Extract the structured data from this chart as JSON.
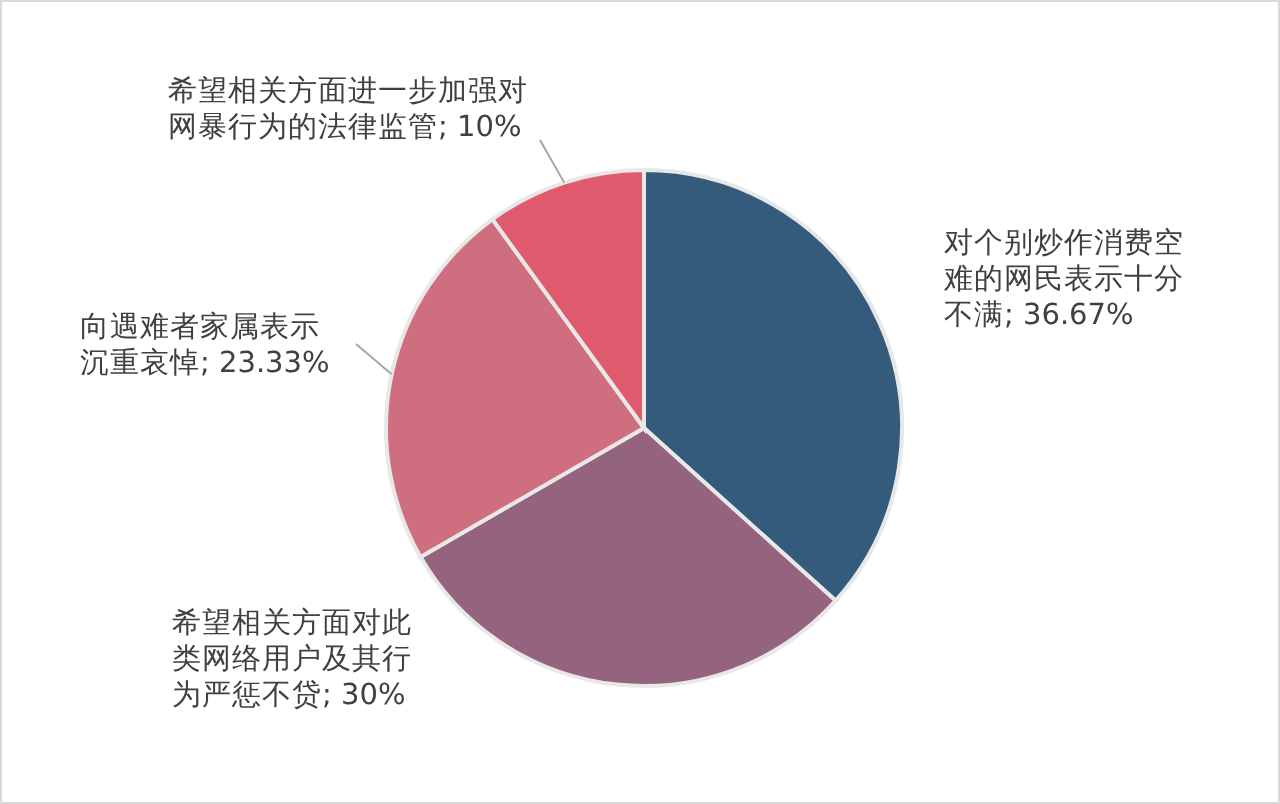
{
  "chart_data": {
    "type": "pie",
    "categories": [
      "对个别炒作消费空难的网民表示十分不满",
      "希望相关方面对此类网络用户及其行为严惩不贷",
      "向遇难者家属表示沉重哀悼",
      "希望相关方面进一步加强对网暴行为的法律监管"
    ],
    "values": [
      36.67,
      30,
      23.33,
      10
    ],
    "value_labels": [
      "36.67%",
      "30%",
      "23.33%",
      "10%"
    ],
    "colors": [
      "#345a7c",
      "#94637e",
      "#cf6e7e",
      "#e05a6e"
    ]
  }
}
